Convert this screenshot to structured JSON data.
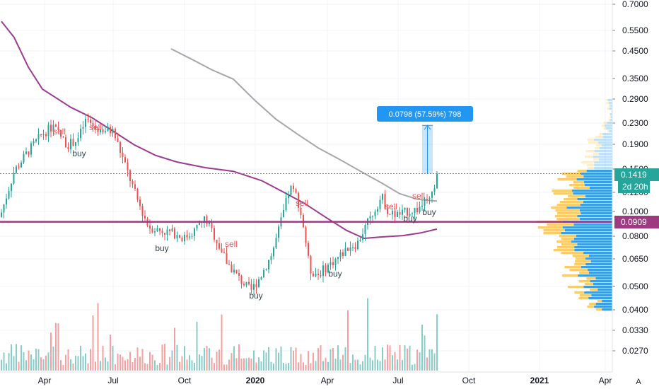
{
  "chart_data": {
    "type": "candlestick",
    "price_axis": {
      "scale": "log",
      "ticks": [
        "0.7000",
        "0.5500",
        "0.4500",
        "0.3500",
        "0.2900",
        "0.2300",
        "0.1900",
        "0.1500",
        "0.1200",
        "0.1000",
        "0.0800",
        "0.0650",
        "0.0500",
        "0.0400",
        "0.0330",
        "0.0270"
      ],
      "last_price": "0.1419",
      "countdown": "2d 20h",
      "level_price": "0.0909"
    },
    "time_axis": {
      "labels": [
        "Apr",
        "Jul",
        "Oct",
        "2020",
        "Apr",
        "Jul",
        "Oct",
        "2021",
        "Apr"
      ],
      "bold": [
        false,
        false,
        false,
        true,
        false,
        false,
        false,
        true,
        false
      ]
    },
    "measure_label": "0.0798 (57.59%) 798",
    "signals": [
      {
        "text": "sell",
        "kind": "sell"
      },
      {
        "text": "buy",
        "kind": "buy"
      },
      {
        "text": "sell",
        "kind": "sell"
      },
      {
        "text": "buy",
        "kind": "buy"
      },
      {
        "text": "sell",
        "kind": "sell"
      },
      {
        "text": "buy",
        "kind": "buy"
      },
      {
        "text": "sell",
        "kind": "sell"
      },
      {
        "text": "buy",
        "kind": "buy"
      },
      {
        "text": "sell",
        "kind": "sell"
      },
      {
        "text": "buy",
        "kind": "buy"
      },
      {
        "text": "sell",
        "kind": "sell"
      },
      {
        "text": "buy",
        "kind": "buy"
      }
    ],
    "auto_scale_button": "A",
    "colors": {
      "up": "#26a69a",
      "down": "#ef5350",
      "ma_fast": "#9c3b8f",
      "ma_slow": "#a7a7a7",
      "level_line": "#9c3b7f",
      "last_price": "#26a69a",
      "measure": "#2196f3",
      "vp_up": "#2f9ae0",
      "vp_down": "#f7c85a"
    }
  }
}
